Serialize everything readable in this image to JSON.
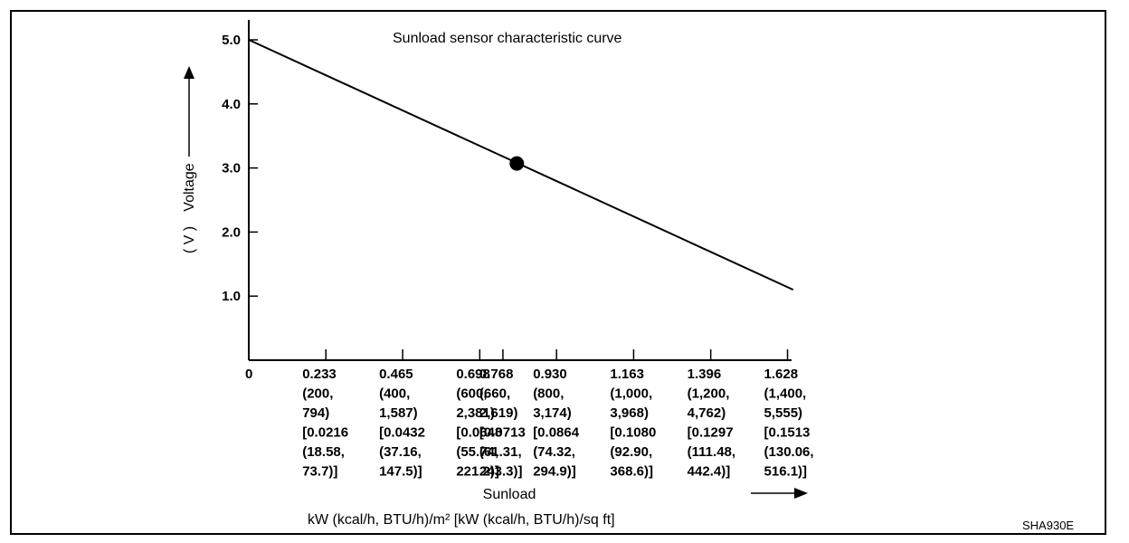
{
  "chart_data": {
    "type": "line",
    "title": "Sunload sensor characteristic curve",
    "ylabel": "Voltage",
    "ylabel_unit": "( V )",
    "xlabel": "Sunload",
    "xunit": "kW (kcal/h, BTU/h)/m²  [kW (kcal/h, BTU/h)/sq ft]",
    "code": "SHA930E",
    "ylim": [
      0,
      5.2
    ],
    "yticks": [
      {
        "value": 1.0,
        "label": "1.0"
      },
      {
        "value": 2.0,
        "label": "2.0"
      },
      {
        "value": 3.0,
        "label": "3.0"
      },
      {
        "value": 4.0,
        "label": "4.0"
      },
      {
        "value": 5.0,
        "label": "5.0"
      }
    ],
    "xticks": [
      {
        "value": 0,
        "lines": [
          "0"
        ]
      },
      {
        "value": 0.233,
        "lines": [
          "0.233",
          "(200,",
          "794)",
          "[0.0216",
          "(18.58,",
          "73.7)]"
        ]
      },
      {
        "value": 0.465,
        "lines": [
          "0.465",
          "(400,",
          "1,587)",
          "[0.0432",
          "(37.16,",
          "147.5)]"
        ]
      },
      {
        "value": 0.698,
        "lines": [
          "0.698",
          "(600,",
          "2,381)",
          "[0.0648",
          "(55.74,",
          "221.2)]"
        ]
      },
      {
        "value": 0.768,
        "lines": [
          "0.768",
          "(660,",
          "2,619)",
          "[0.0713",
          "(61.31,",
          "243.3)]"
        ]
      },
      {
        "value": 0.93,
        "lines": [
          "0.930",
          "(800,",
          "3,174)",
          "[0.0864",
          "(74.32,",
          "294.9)]"
        ]
      },
      {
        "value": 1.163,
        "lines": [
          "1.163",
          "(1,000,",
          "3,968)",
          "[0.1080",
          "(92.90,",
          "368.6)]"
        ]
      },
      {
        "value": 1.396,
        "lines": [
          "1.396",
          "(1,200,",
          "4,762)",
          "[0.1297",
          "(111.48,",
          "442.4)]"
        ]
      },
      {
        "value": 1.628,
        "lines": [
          "1.628",
          "(1,400,",
          "5,555)",
          "[0.1513",
          "(130.06,",
          "516.1)]"
        ]
      }
    ],
    "series": [
      {
        "x": [
          0,
          1.645
        ],
        "y": [
          5.0,
          1.1
        ]
      }
    ],
    "marker": {
      "x": 0.81,
      "y": 3.07
    },
    "grid": false
  }
}
